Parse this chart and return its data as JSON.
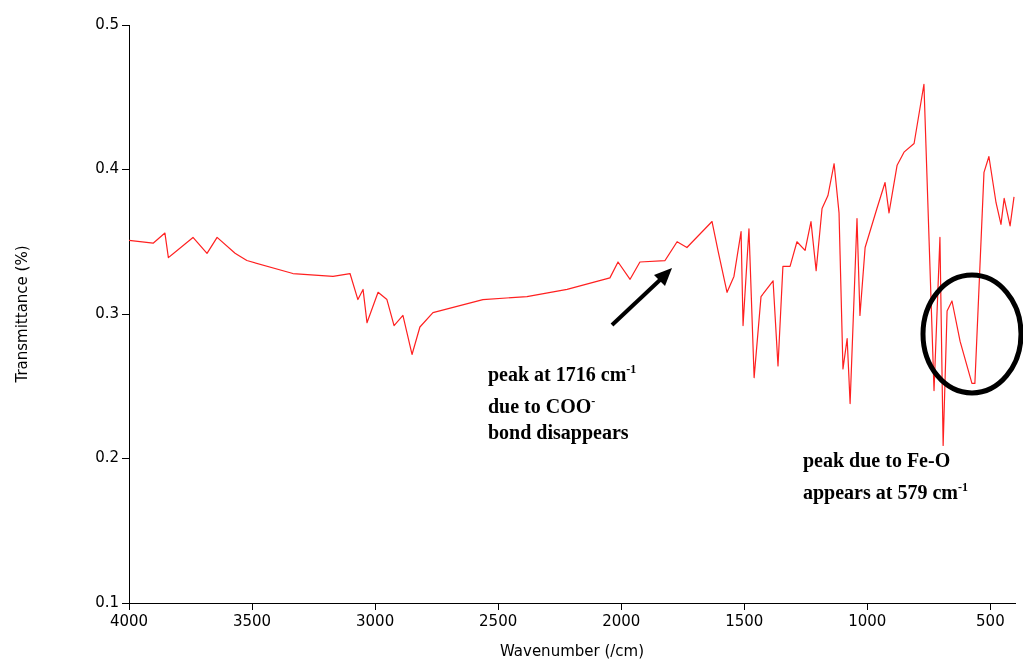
{
  "chart_data": {
    "type": "line",
    "xlabel": "Wavenumber (/cm)",
    "ylabel": "Transmittance (%)",
    "x": [
      4000,
      3902,
      3854,
      3840,
      3740,
      3683,
      3642,
      3569,
      3521,
      3334,
      3171,
      3102,
      3070,
      3049,
      3033,
      2988,
      2952,
      2923,
      2887,
      2850,
      2818,
      2765,
      2562,
      2383,
      2220,
      2046,
      2013,
      1964,
      1924,
      1822,
      1773,
      1733,
      1631,
      1607,
      1570,
      1542,
      1513,
      1505,
      1481,
      1460,
      1432,
      1383,
      1363,
      1343,
      1314,
      1286,
      1253,
      1229,
      1208,
      1184,
      1160,
      1135,
      1115,
      1099,
      1082,
      1070,
      1042,
      1030,
      1009,
      961,
      928,
      912,
      879,
      851,
      810,
      770,
      729,
      705,
      692,
      676,
      656,
      623,
      575,
      563,
      526,
      506,
      477,
      457,
      444,
      420,
      404
    ],
    "series": [
      {
        "color": "#ff2020",
        "values": [
          0.351,
          0.349,
          0.356,
          0.339,
          0.353,
          0.342,
          0.353,
          0.342,
          0.337,
          0.328,
          0.326,
          0.328,
          0.31,
          0.317,
          0.294,
          0.315,
          0.31,
          0.292,
          0.299,
          0.272,
          0.291,
          0.301,
          0.31,
          0.312,
          0.317,
          0.325,
          0.336,
          0.324,
          0.336,
          0.337,
          0.35,
          0.346,
          0.364,
          0.344,
          0.315,
          0.326,
          0.357,
          0.292,
          0.359,
          0.256,
          0.312,
          0.323,
          0.264,
          0.333,
          0.333,
          0.35,
          0.344,
          0.364,
          0.33,
          0.373,
          0.382,
          0.404,
          0.37,
          0.262,
          0.283,
          0.238,
          0.366,
          0.299,
          0.346,
          0.373,
          0.391,
          0.37,
          0.403,
          0.412,
          0.418,
          0.459,
          0.247,
          0.353,
          0.209,
          0.302,
          0.309,
          0.281,
          0.252,
          0.252,
          0.398,
          0.409,
          0.377,
          0.362,
          0.38,
          0.361,
          0.381
        ]
      }
    ],
    "xlim": [
      4000,
      400
    ],
    "xticks": [
      4000,
      3500,
      3000,
      2500,
      2000,
      1500,
      1000,
      500
    ],
    "ylim": [
      0.1,
      0.5
    ],
    "yticks": [
      0.1,
      0.2,
      0.3,
      0.4,
      0.5
    ],
    "grid": false,
    "legend": false,
    "marker": "none",
    "line_style": "solid",
    "annotations": [
      "peak at 1716 cm$^{-1}$\ndue to COO$^{-}$\nbond disappears",
      "peak due to Fe-O\nappears at 579 cm$^{-1}$"
    ]
  }
}
